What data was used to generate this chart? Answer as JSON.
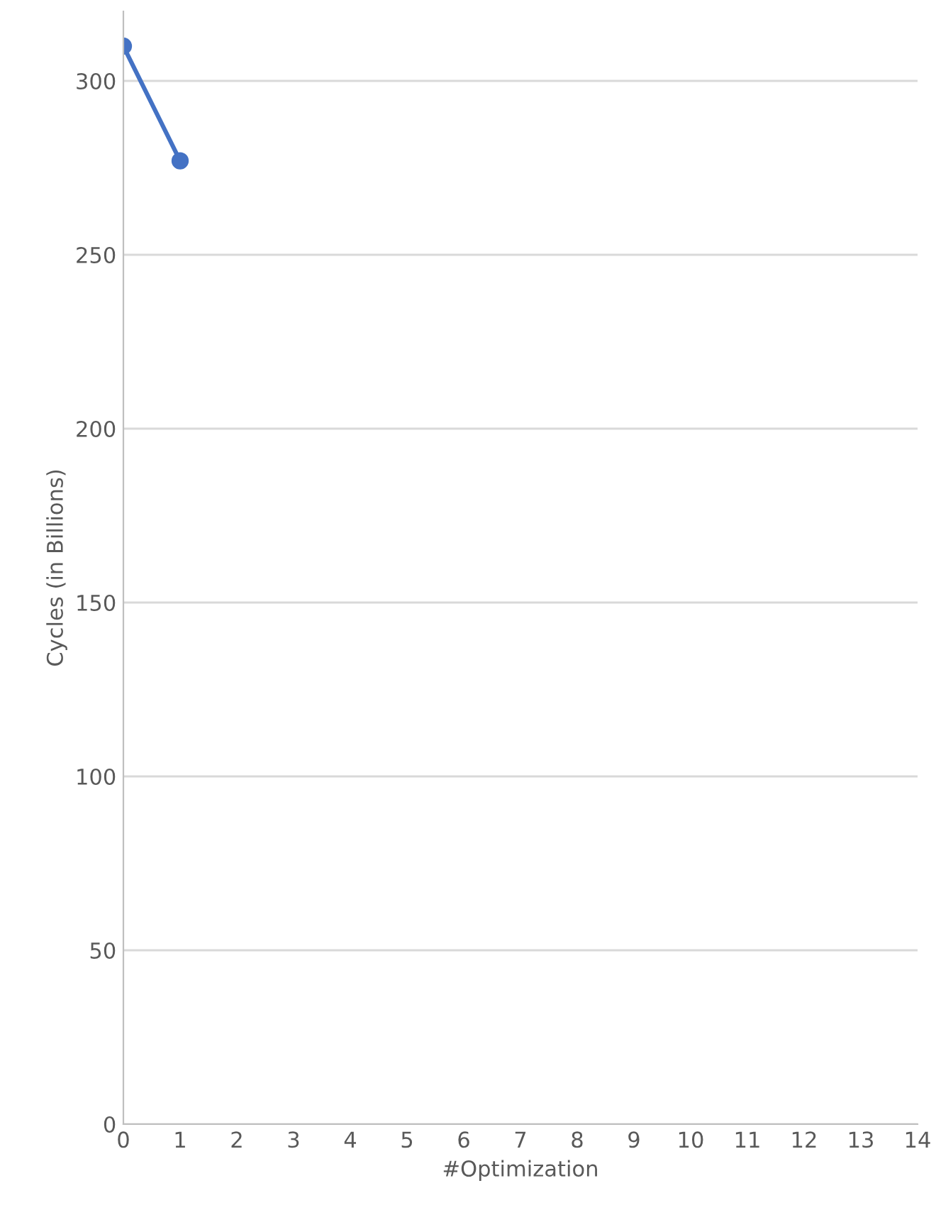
{
  "chart_data": {
    "type": "line",
    "xlabel": "#Optimization",
    "ylabel": "Cycles (in Billions)",
    "x": [
      0,
      1
    ],
    "series": [
      {
        "color": "#4472c4",
        "values": [
          310,
          277
        ]
      }
    ],
    "xlim": [
      0,
      14
    ],
    "xticks": [
      0,
      1,
      2,
      3,
      4,
      5,
      6,
      7,
      8,
      9,
      10,
      11,
      12,
      13,
      14
    ],
    "ylim": [
      0,
      320
    ],
    "yticks": [
      0,
      50,
      100,
      150,
      200,
      250,
      300
    ],
    "grid": "y",
    "marker": "circle",
    "line_style": "solid"
  }
}
